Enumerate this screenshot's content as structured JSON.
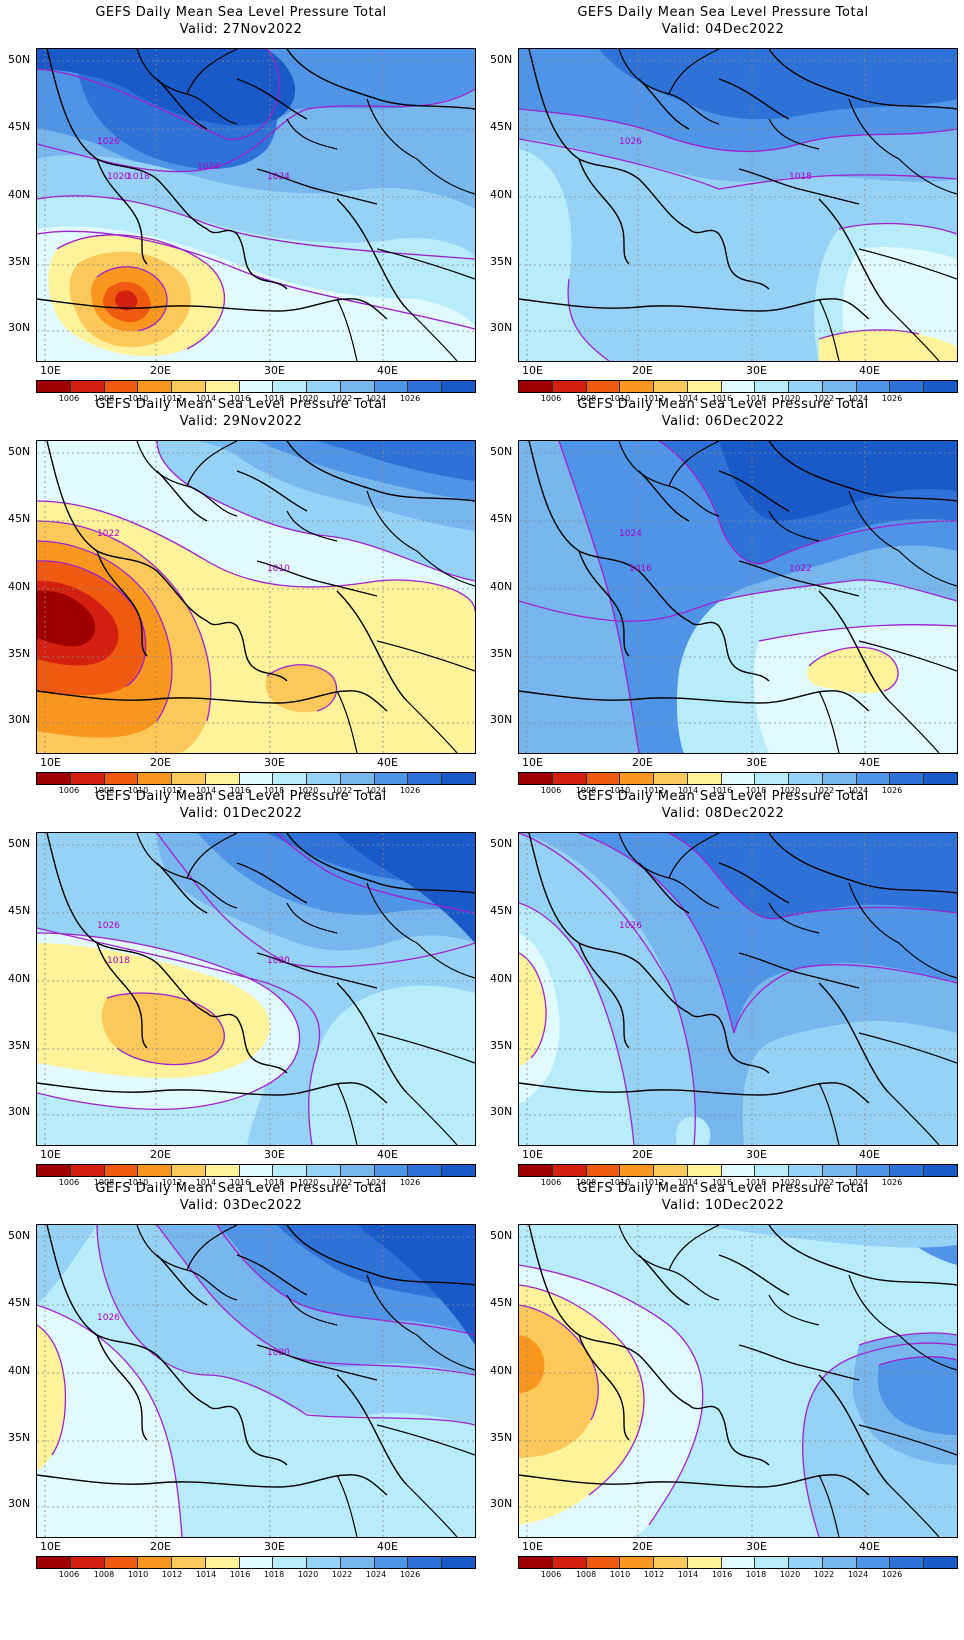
{
  "colorbar": {
    "colors": [
      "#a00000",
      "#d42010",
      "#f05a10",
      "#f8961e",
      "#fcc85a",
      "#fef29a",
      "#e0faff",
      "#b8ecfa",
      "#96d2f5",
      "#78b6ee",
      "#4f94e6",
      "#2e72d8",
      "#1a5ac8"
    ],
    "labels": [
      "1006",
      "1008",
      "1010",
      "1012",
      "1014",
      "1016",
      "1018",
      "1020",
      "1022",
      "1024",
      "1026"
    ]
  },
  "axes": {
    "lat_labels": [
      "50N",
      "45N",
      "40N",
      "35N",
      "30N"
    ],
    "lon_labels": [
      "10E",
      "20E",
      "30E",
      "40E"
    ]
  },
  "panels": [
    {
      "title": "GEFS Daily Mean Sea Level Pressure Total",
      "valid": "Valid: 27Nov2022",
      "contour_labels": [
        "1026",
        "1024",
        "1020",
        "1018",
        "1024"
      ]
    },
    {
      "title": "GEFS Daily Mean Sea Level Pressure Total",
      "valid": "Valid: 04Dec2022",
      "contour_labels": [
        "1026",
        "1018"
      ]
    },
    {
      "title": "GEFS Daily Mean Sea Level Pressure Total",
      "valid": "Valid: 29Nov2022",
      "contour_labels": [
        "1022",
        "1010"
      ]
    },
    {
      "title": "GEFS Daily Mean Sea Level Pressure Total",
      "valid": "Valid: 06Dec2022",
      "contour_labels": [
        "1024",
        "1022",
        "1016"
      ]
    },
    {
      "title": "GEFS Daily Mean Sea Level Pressure Total",
      "valid": "Valid: 01Dec2022",
      "contour_labels": [
        "1026",
        "1020",
        "1018"
      ]
    },
    {
      "title": "GEFS Daily Mean Sea Level Pressure Total",
      "valid": "Valid: 08Dec2022",
      "contour_labels": [
        "1026"
      ]
    },
    {
      "title": "GEFS Daily Mean Sea Level Pressure Total",
      "valid": "Valid: 03Dec2022",
      "contour_labels": [
        "1026",
        "1020"
      ]
    },
    {
      "title": "GEFS Daily Mean Sea Level Pressure Total",
      "valid": "Valid: 10Dec2022",
      "contour_labels": []
    }
  ]
}
